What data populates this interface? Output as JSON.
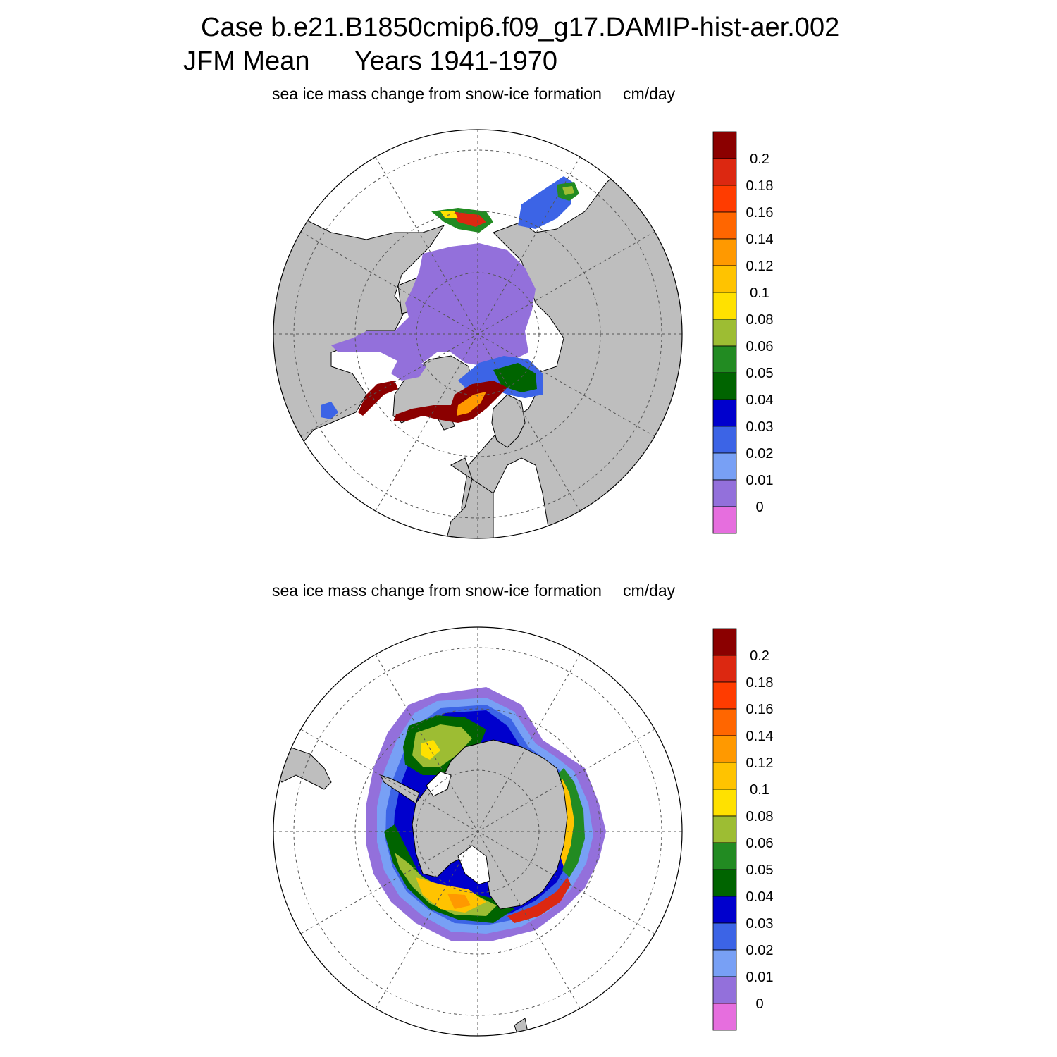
{
  "title": {
    "case": "Case b.e21.B1850cmip6.f09_g17.DAMIP-hist-aer.002",
    "period": "JFM Mean",
    "years": "Years 1941-1970"
  },
  "panels": [
    {
      "id": "north",
      "hemisphere": "Northern Hemisphere",
      "title": "sea ice mass change from snow-ice formation",
      "units": "cm/day"
    },
    {
      "id": "south",
      "hemisphere": "Southern Hemisphere",
      "title": "sea ice mass change from snow-ice formation",
      "units": "cm/day"
    }
  ],
  "colorbar": {
    "labels": [
      "0.2",
      "0.18",
      "0.16",
      "0.14",
      "0.12",
      "0.1",
      "0.08",
      "0.06",
      "0.05",
      "0.04",
      "0.03",
      "0.02",
      "0.01",
      "0"
    ],
    "colors_top_to_bottom": [
      "#8b0000",
      "#dc2811",
      "#ff3c00",
      "#ff6600",
      "#ff9900",
      "#ffc300",
      "#ffe100",
      "#9dbd33",
      "#228b22",
      "#006400",
      "#0000cd",
      "#3c64e6",
      "#78a0f5",
      "#9370db",
      "#e66ede"
    ]
  },
  "colors": {
    "land": "#bebebe",
    "ocean": "#ffffff",
    "grid": "#555555"
  }
}
